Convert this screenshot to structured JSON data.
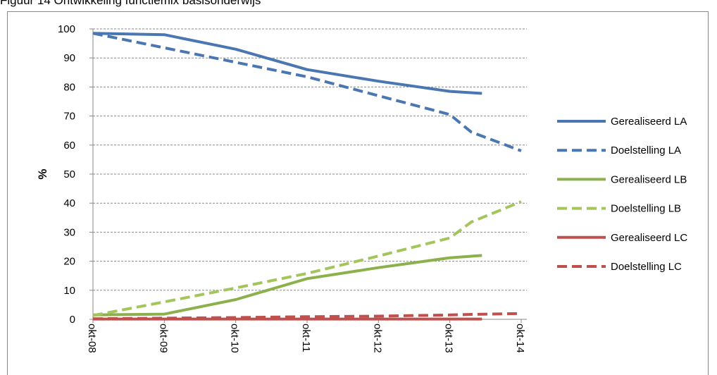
{
  "figure_title": "Figuur 14 Ontwikkeling functiemix basisonderwijs",
  "chart_data": {
    "type": "line",
    "title": "",
    "xlabel": "",
    "ylabel": "%",
    "ylim": [
      0,
      100
    ],
    "yticks": [
      0,
      10,
      20,
      30,
      40,
      50,
      60,
      70,
      80,
      90,
      100
    ],
    "categories": [
      "okt-08",
      "okt-09",
      "okt-10",
      "okt-11",
      "okt-12",
      "okt-13",
      "okt-14"
    ],
    "grid": "horizontal dashed",
    "legend_position": "right",
    "series": [
      {
        "name": "Gerealiseerd LA",
        "style": "solid",
        "color": "#4a76b2",
        "points": [
          [
            0,
            98.5
          ],
          [
            1,
            98
          ],
          [
            2,
            93
          ],
          [
            3,
            86
          ],
          [
            4,
            82
          ],
          [
            5,
            78.5
          ],
          [
            5.45,
            77.8
          ]
        ]
      },
      {
        "name": "Doelstelling LA",
        "style": "dashed",
        "color": "#4a76b2",
        "points": [
          [
            0,
            98.5
          ],
          [
            1,
            93.5
          ],
          [
            2,
            88.5
          ],
          [
            3,
            83.5
          ],
          [
            4,
            77
          ],
          [
            5,
            70.5
          ],
          [
            5.3,
            64.5
          ],
          [
            6,
            58
          ]
        ]
      },
      {
        "name": "Gerealiseerd LB",
        "style": "solid",
        "color": "#8cb04c",
        "points": [
          [
            0,
            1.5
          ],
          [
            1,
            1.8
          ],
          [
            2,
            6.8
          ],
          [
            3,
            14
          ],
          [
            4,
            17.8
          ],
          [
            5,
            21.2
          ],
          [
            5.45,
            22
          ]
        ]
      },
      {
        "name": "Doelstelling LB",
        "style": "dashed",
        "color": "#a3c55b",
        "points": [
          [
            0,
            1.3
          ],
          [
            1,
            6
          ],
          [
            2,
            10.8
          ],
          [
            3,
            15.8
          ],
          [
            4,
            21.8
          ],
          [
            5,
            28
          ],
          [
            5.3,
            33.5
          ],
          [
            6,
            40.5
          ]
        ]
      },
      {
        "name": "Gerealiseerd LC",
        "style": "solid",
        "color": "#c0504d",
        "points": [
          [
            0,
            0.1
          ],
          [
            1,
            0.1
          ],
          [
            2,
            0.1
          ],
          [
            3,
            0.1
          ],
          [
            4,
            0.1
          ],
          [
            5,
            0.1
          ],
          [
            5.45,
            0.1
          ]
        ]
      },
      {
        "name": "Doelstelling LC",
        "style": "dashed",
        "color": "#c0504d",
        "points": [
          [
            0,
            0.2
          ],
          [
            1,
            0.4
          ],
          [
            2,
            0.6
          ],
          [
            3,
            0.9
          ],
          [
            4,
            1.1
          ],
          [
            5,
            1.5
          ],
          [
            5.3,
            1.7
          ],
          [
            6,
            2
          ]
        ]
      }
    ]
  }
}
